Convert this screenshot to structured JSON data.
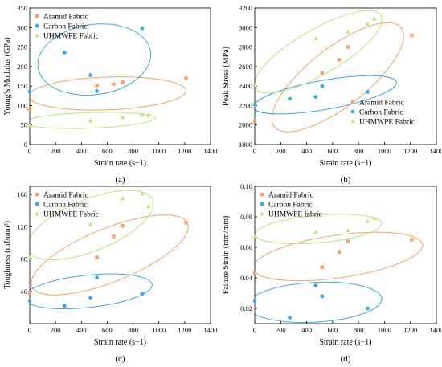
{
  "colors": {
    "aramid": "#F4A26B",
    "carbon": "#3DA9E6",
    "uhmwpe": "#B7E87A",
    "axis": "#000000"
  },
  "chart_data": [
    {
      "type": "scatter",
      "panel_label": "(a)",
      "xlabel": "Strain rate (s−1)",
      "ylabel": "Young’s Modulus (GPa)",
      "xlim": [
        0,
        1400
      ],
      "ylim": [
        0,
        350
      ],
      "xticks": [
        0,
        200,
        400,
        600,
        800,
        1000,
        1200,
        1400
      ],
      "yticks": [
        0,
        50,
        100,
        150,
        200,
        250,
        300,
        350
      ],
      "legend_position": "top-left",
      "series": [
        {
          "name": "Aramid Fabric",
          "color_key": "aramid",
          "marker": "square",
          "x": [
            0,
            520,
            650,
            720,
            1210
          ],
          "y": [
            91,
            152,
            155,
            160,
            170
          ]
        },
        {
          "name": "Carbon Fabric",
          "color_key": "carbon",
          "marker": "circle",
          "x": [
            0,
            270,
            470,
            520,
            870
          ],
          "y": [
            136,
            236,
            178,
            137,
            298
          ]
        },
        {
          "name": "UHMWPE Fabric",
          "color_key": "uhmwpe",
          "marker": "triangle",
          "x": [
            0,
            470,
            720,
            870,
            920
          ],
          "y": [
            48,
            61,
            70,
            76,
            76
          ]
        }
      ],
      "ellipses": [
        {
          "color_key": "aramid",
          "cx": 600,
          "cy": 131,
          "rx": 610,
          "ry": 42,
          "angle_deg": -2
        },
        {
          "color_key": "carbon",
          "cx": 500,
          "cy": 218,
          "rx": 440,
          "ry": 90,
          "angle_deg": -8
        },
        {
          "color_key": "uhmwpe",
          "cx": 460,
          "cy": 62,
          "rx": 510,
          "ry": 20,
          "angle_deg": -2
        }
      ]
    },
    {
      "type": "scatter",
      "panel_label": "(b)",
      "xlabel": "Strain rate (s−1)",
      "ylabel": "Peak Stress (MPa)",
      "xlim": [
        0,
        1400
      ],
      "ylim": [
        1800,
        3200
      ],
      "xticks": [
        0,
        200,
        400,
        600,
        800,
        1000,
        1200,
        1400
      ],
      "yticks": [
        1800,
        2000,
        2200,
        2400,
        2600,
        2800,
        3000,
        3200
      ],
      "legend_position": "bottom-right",
      "series": [
        {
          "name": "Aramid Fabric",
          "color_key": "aramid",
          "marker": "square",
          "x": [
            0,
            520,
            650,
            720,
            1210
          ],
          "y": [
            2040,
            2530,
            2670,
            2800,
            2920
          ]
        },
        {
          "name": "Carbon Fabric",
          "color_key": "carbon",
          "marker": "circle",
          "x": [
            0,
            270,
            470,
            520,
            870
          ],
          "y": [
            2210,
            2270,
            2290,
            2400,
            2340
          ]
        },
        {
          "name": "UHMWPE Fabric",
          "color_key": "uhmwpe",
          "marker": "triangle",
          "x": [
            0,
            470,
            720,
            870,
            920
          ],
          "y": [
            2410,
            2890,
            2960,
            3040,
            3090
          ]
        }
      ],
      "ellipses": [
        {
          "color_key": "aramid",
          "cx": 640,
          "cy": 2490,
          "rx": 620,
          "ry": 300,
          "angle_deg": -38
        },
        {
          "color_key": "carbon",
          "cx": 540,
          "cy": 2310,
          "rx": 560,
          "ry": 150,
          "angle_deg": -10
        },
        {
          "color_key": "uhmwpe",
          "cx": 490,
          "cy": 2750,
          "rx": 560,
          "ry": 230,
          "angle_deg": -30
        }
      ]
    },
    {
      "type": "scatter",
      "panel_label": "(c)",
      "xlabel": "Strain rate (s−1)",
      "ylabel": "Toughness (mJ/mm³)",
      "xlim": [
        0,
        1400
      ],
      "ylim": [
        0,
        170
      ],
      "xticks": [
        0,
        200,
        400,
        600,
        800,
        1000,
        1200,
        1400
      ],
      "yticks": [
        40,
        80,
        120,
        160
      ],
      "legend_position": "top-left",
      "series": [
        {
          "name": "Aramid Fabric",
          "color_key": "aramid",
          "marker": "square",
          "x": [
            0,
            520,
            650,
            720,
            1210
          ],
          "y": [
            38,
            82,
            108,
            121,
            125
          ]
        },
        {
          "name": "Carbon Fabric",
          "color_key": "carbon",
          "marker": "circle",
          "x": [
            0,
            270,
            470,
            520,
            870
          ],
          "y": [
            28,
            22,
            32,
            57,
            37
          ]
        },
        {
          "name": "UHMWPE Fabric",
          "color_key": "uhmwpe",
          "marker": "triangle",
          "x": [
            0,
            470,
            720,
            870,
            920
          ],
          "y": [
            82,
            123,
            155,
            161,
            145
          ]
        }
      ],
      "ellipses": [
        {
          "color_key": "aramid",
          "cx": 620,
          "cy": 85,
          "rx": 650,
          "ry": 33,
          "angle_deg": -22
        },
        {
          "color_key": "carbon",
          "cx": 450,
          "cy": 40,
          "rx": 500,
          "ry": 20,
          "angle_deg": -6
        },
        {
          "color_key": "uhmwpe",
          "cx": 470,
          "cy": 122,
          "rx": 520,
          "ry": 32,
          "angle_deg": -22
        }
      ]
    },
    {
      "type": "scatter",
      "panel_label": "(d)",
      "xlabel": "Strain rate (s−1)",
      "ylabel": "Failure Strain (mm/mm)",
      "xlim": [
        0,
        1400
      ],
      "ylim": [
        0.01,
        0.1
      ],
      "xticks": [
        0,
        200,
        400,
        600,
        800,
        1000,
        1200,
        1400
      ],
      "yticks": [
        0.02,
        0.04,
        0.06,
        0.08,
        0.1
      ],
      "ytick_labels": [
        "0.02",
        "0.04",
        "0.06",
        "0.08",
        "0.10"
      ],
      "legend_position": "top-left",
      "series": [
        {
          "name": "Aramid Fabric",
          "color_key": "aramid",
          "marker": "square",
          "x": [
            0,
            520,
            650,
            720,
            1210
          ],
          "y": [
            0.043,
            0.047,
            0.057,
            0.064,
            0.065
          ]
        },
        {
          "name": "Carbon Fabric",
          "color_key": "carbon",
          "marker": "circle",
          "x": [
            0,
            270,
            470,
            520,
            870
          ],
          "y": [
            0.025,
            0.014,
            0.035,
            0.028,
            0.02
          ]
        },
        {
          "name": "UHMWPE fabric",
          "color_key": "uhmwpe",
          "marker": "triangle",
          "x": [
            0,
            470,
            720,
            870,
            920
          ],
          "y": [
            0.067,
            0.07,
            0.071,
            0.077,
            0.079
          ]
        }
      ],
      "ellipses": [
        {
          "color_key": "aramid",
          "cx": 640,
          "cy": 0.054,
          "rx": 660,
          "ry": 0.014,
          "angle_deg": -8
        },
        {
          "color_key": "carbon",
          "cx": 460,
          "cy": 0.024,
          "rx": 520,
          "ry": 0.013,
          "angle_deg": -3
        },
        {
          "color_key": "uhmwpe",
          "cx": 490,
          "cy": 0.072,
          "rx": 490,
          "ry": 0.009,
          "angle_deg": -5
        }
      ]
    }
  ]
}
